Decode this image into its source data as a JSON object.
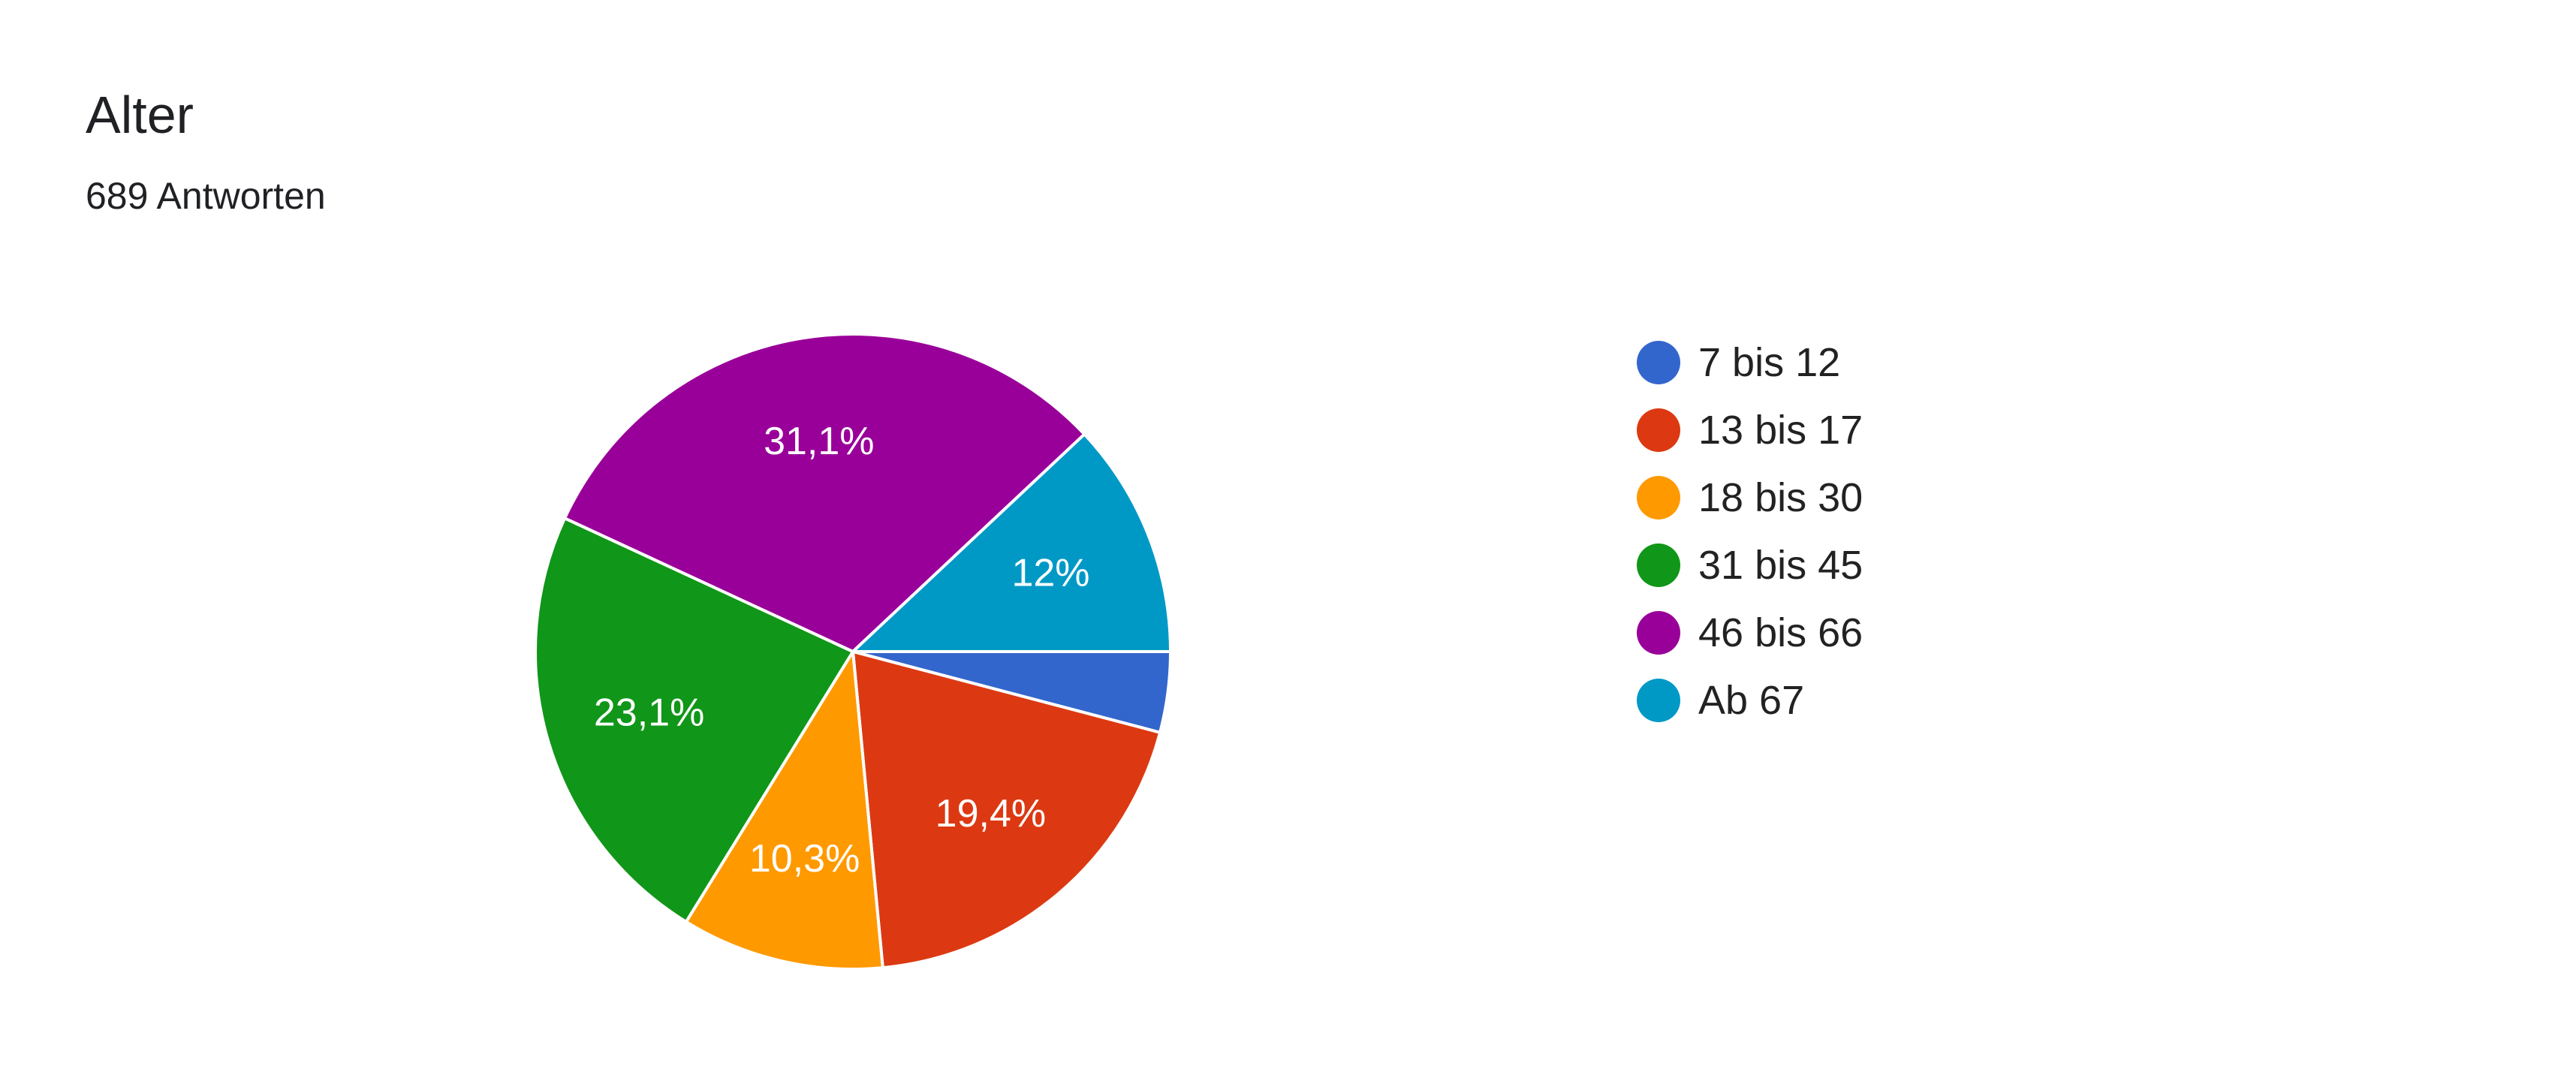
{
  "header": {
    "title": "Alter",
    "subtitle": "689 Antworten"
  },
  "chart_data": {
    "type": "pie",
    "title": "Alter",
    "subtitle": "689 Antworten",
    "legend_position": "right",
    "categories": [
      "7 bis 12",
      "13 bis 17",
      "18 bis 30",
      "31 bis 45",
      "46 bis 66",
      "Ab 67"
    ],
    "values": [
      4.1,
      19.4,
      10.3,
      23.1,
      31.1,
      12.0
    ],
    "labels": [
      "",
      "19,4%",
      "10,3%",
      "23,1%",
      "31,1%",
      "12%"
    ],
    "colors": [
      "#3366cc",
      "#dc3912",
      "#ff9900",
      "#109618",
      "#990099",
      "#0099c6"
    ],
    "start_direction": "east",
    "direction": "clockwise"
  }
}
